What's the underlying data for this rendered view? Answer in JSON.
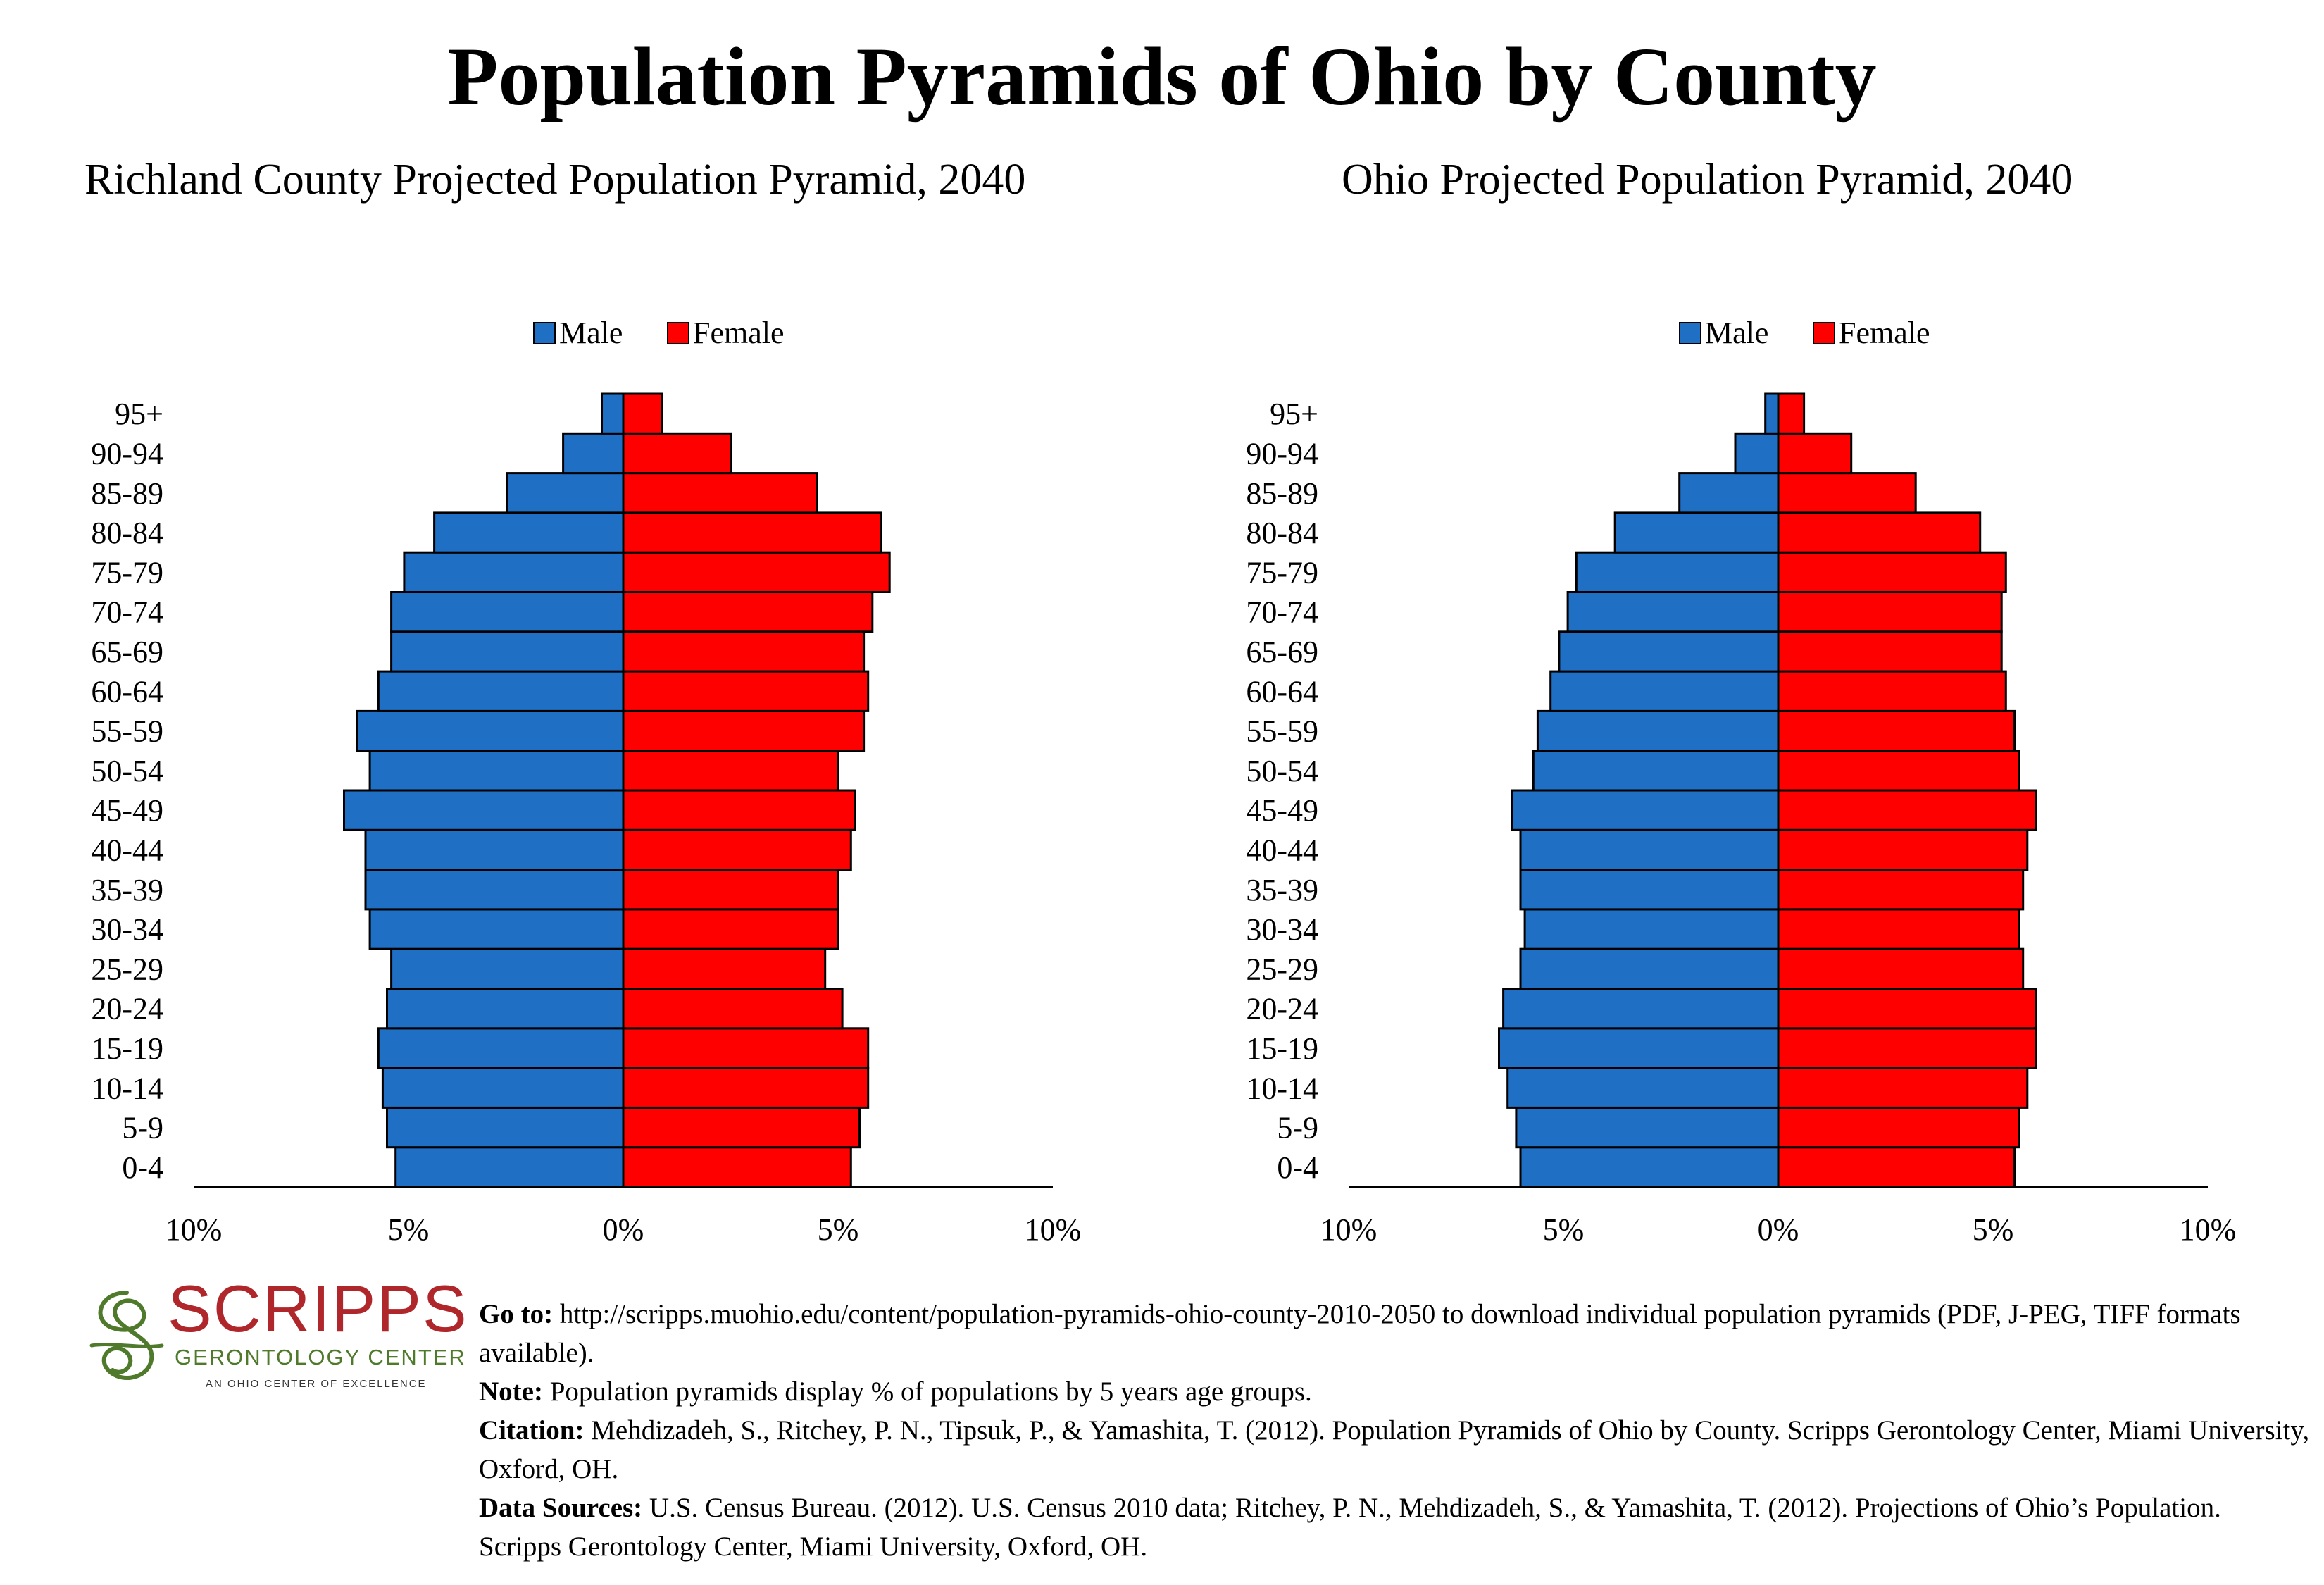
{
  "title": "Population Pyramids of Ohio by County",
  "chart_data": [
    {
      "type": "bar",
      "title": "Richland County Projected Population Pyramid, 2040",
      "legend": [
        "Male",
        "Female"
      ],
      "legend_placement": "top-center",
      "categories": [
        "0-4",
        "5-9",
        "10-14",
        "15-19",
        "20-24",
        "25-29",
        "30-34",
        "35-39",
        "40-44",
        "45-49",
        "50-54",
        "55-59",
        "60-64",
        "65-69",
        "70-74",
        "75-79",
        "80-84",
        "85-89",
        "90-94",
        "95+"
      ],
      "series": [
        {
          "name": "Male",
          "values": [
            5.3,
            5.5,
            5.6,
            5.7,
            5.5,
            5.4,
            5.9,
            6.0,
            6.0,
            6.5,
            5.9,
            6.2,
            5.7,
            5.4,
            5.4,
            5.1,
            4.4,
            2.7,
            1.4,
            0.5
          ]
        },
        {
          "name": "Female",
          "values": [
            5.3,
            5.5,
            5.7,
            5.7,
            5.1,
            4.7,
            5.0,
            5.0,
            5.3,
            5.4,
            5.0,
            5.6,
            5.7,
            5.6,
            5.8,
            6.2,
            6.0,
            4.5,
            2.5,
            0.9
          ]
        }
      ],
      "xaxis_ticks": [
        "10%",
        "5%",
        "0%",
        "5%",
        "10%"
      ],
      "xlim": [
        -10,
        10
      ]
    },
    {
      "type": "bar",
      "title": "Ohio Projected Population Pyramid, 2040",
      "legend": [
        "Male",
        "Female"
      ],
      "legend_placement": "top-center",
      "categories": [
        "0-4",
        "5-9",
        "10-14",
        "15-19",
        "20-24",
        "25-29",
        "30-34",
        "35-39",
        "40-44",
        "45-49",
        "50-54",
        "55-59",
        "60-64",
        "65-69",
        "70-74",
        "75-79",
        "80-84",
        "85-89",
        "90-94",
        "95+"
      ],
      "series": [
        {
          "name": "Male",
          "values": [
            6.0,
            6.1,
            6.3,
            6.5,
            6.4,
            6.0,
            5.9,
            6.0,
            6.0,
            6.2,
            5.7,
            5.6,
            5.3,
            5.1,
            4.9,
            4.7,
            3.8,
            2.3,
            1.0,
            0.3
          ]
        },
        {
          "name": "Female",
          "values": [
            5.5,
            5.6,
            5.8,
            6.0,
            6.0,
            5.7,
            5.6,
            5.7,
            5.8,
            6.0,
            5.6,
            5.5,
            5.3,
            5.2,
            5.2,
            5.3,
            4.7,
            3.2,
            1.7,
            0.6
          ]
        }
      ],
      "xaxis_ticks": [
        "10%",
        "5%",
        "0%",
        "5%",
        "10%"
      ],
      "xlim": [
        -10,
        10
      ]
    }
  ],
  "colors": {
    "male": "#1f6fc5",
    "female": "#ff0000"
  },
  "logo": {
    "word": "SCRIPPS",
    "sub": "GERONTOLOGY CENTER",
    "tag": "AN OHIO CENTER OF EXCELLENCE"
  },
  "notes": {
    "goto_label": "Go to:",
    "goto_text": "http://scripps.muohio.edu/content/population-pyramids-ohio-county-2010-2050 to download individual population pyramids (PDF, J-PEG, TIFF formats available).",
    "note_label": "Note:",
    "note_text": "Population pyramids display % of populations by 5 years age groups.",
    "citation_label": "Citation:",
    "citation_text": "Mehdizadeh, S., Ritchey, P. N., Tipsuk, P., & Yamashita, T. (2012). Population Pyramids of Ohio by County. Scripps Gerontology Center, Miami University, Oxford, OH.",
    "sources_label": "Data Sources:",
    "sources_text": "U.S. Census Bureau. (2012). U.S. Census 2010 data; Ritchey, P. N., Mehdizadeh, S., & Yamashita, T. (2012). Projections of Ohio’s Population. Scripps Gerontology Center, Miami University, Oxford, OH."
  }
}
